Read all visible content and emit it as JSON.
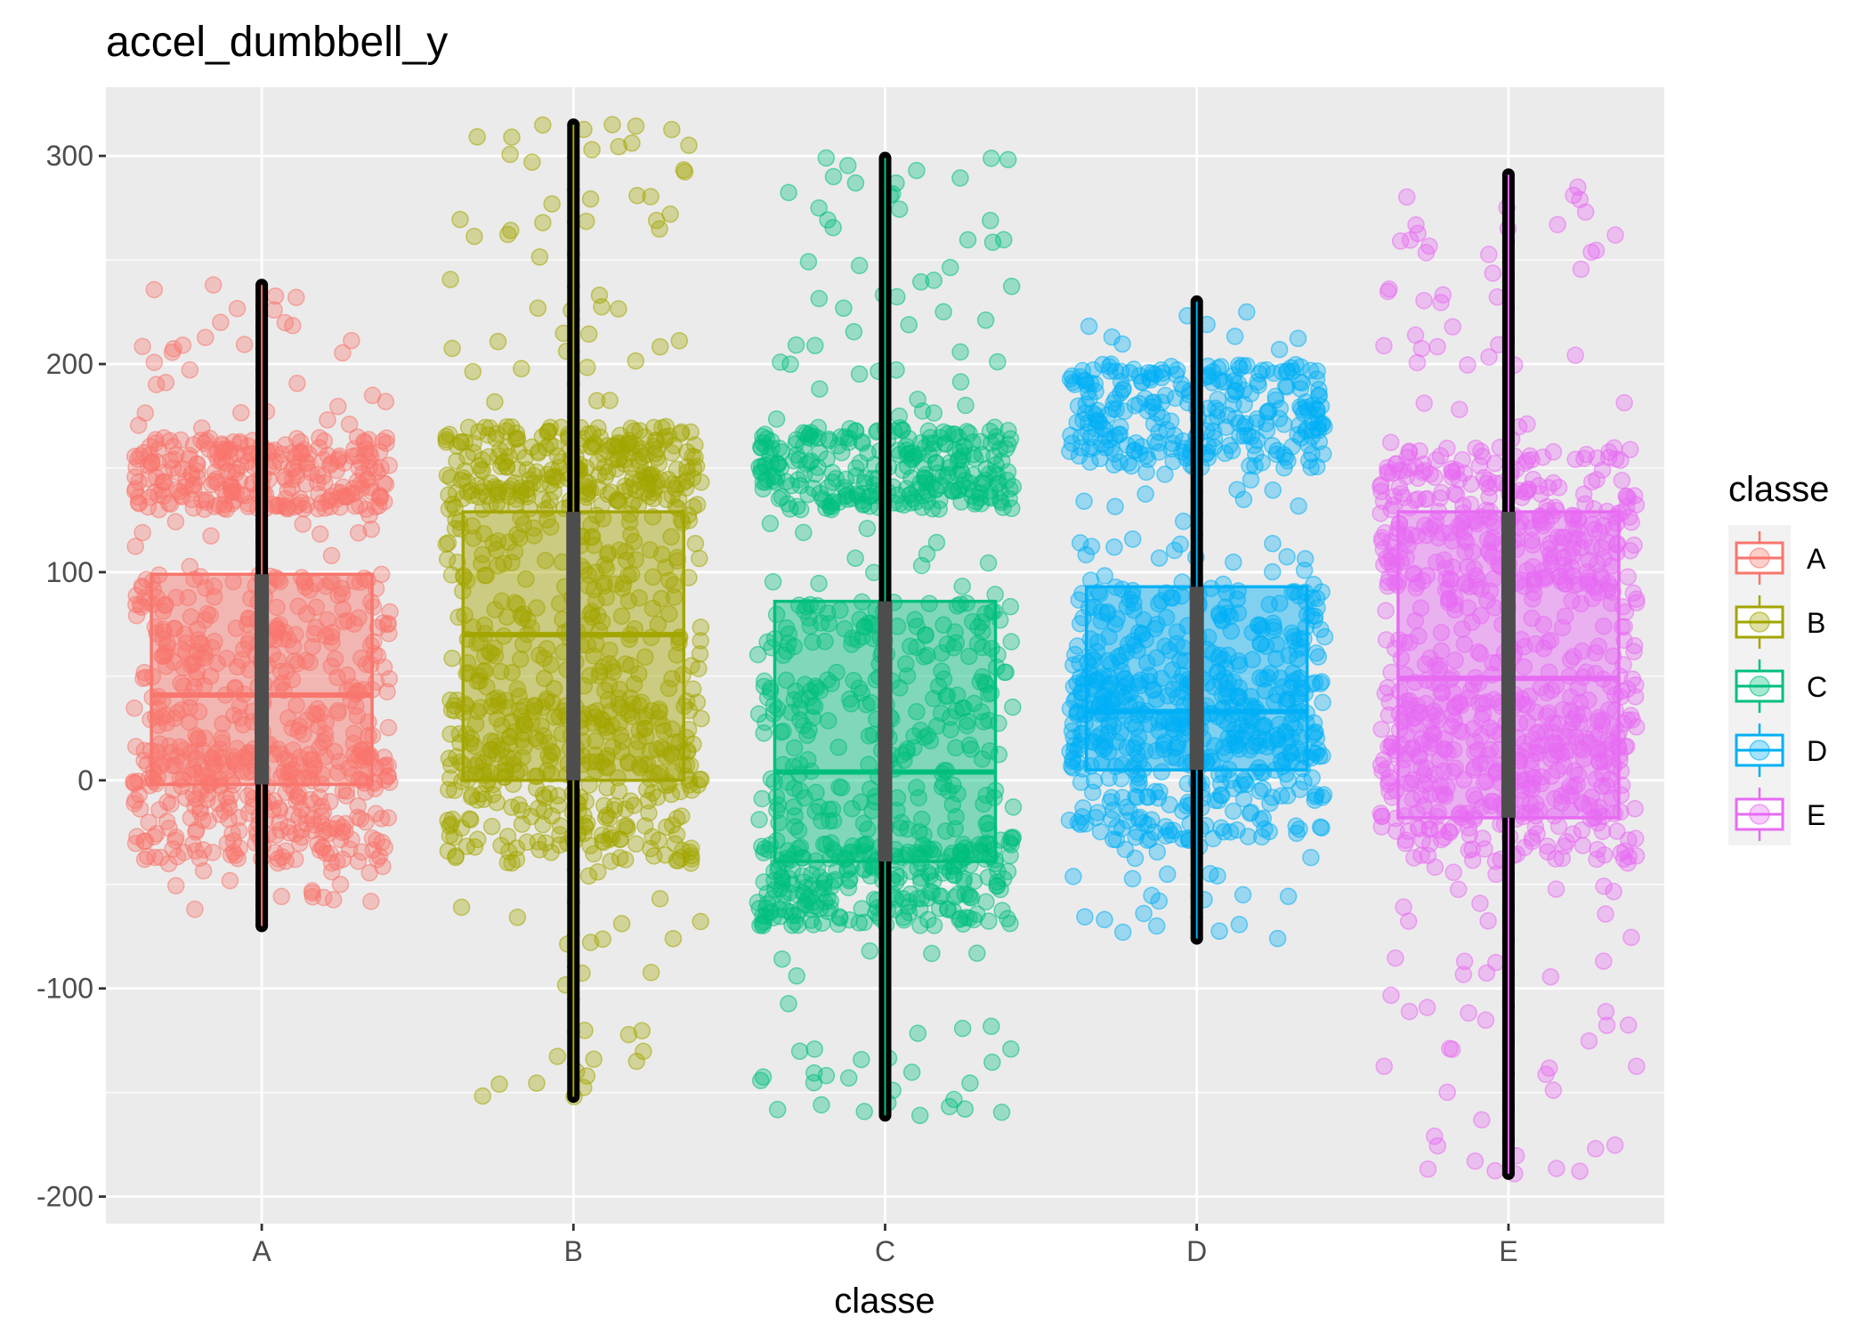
{
  "chart_data": {
    "type": "boxplot",
    "title": "accel_dumbbell_y",
    "xlabel": "classe",
    "ylabel": "",
    "categories": [
      "A",
      "B",
      "C",
      "D",
      "E"
    ],
    "y_ticks": [
      -200,
      -100,
      0,
      100,
      200,
      300
    ],
    "y_tick_labels": [
      "-200",
      "-100",
      "0",
      "100",
      "200",
      "300"
    ],
    "ylim": [
      -213,
      333
    ],
    "grid": true,
    "legend": {
      "title": "classe",
      "placement": "right",
      "entries": [
        "A",
        "B",
        "C",
        "D",
        "E"
      ]
    },
    "colors": {
      "A": "#F8766D",
      "B": "#A3A500",
      "C": "#00BF7D",
      "D": "#00B0F6",
      "E": "#E76BF3"
    },
    "boxes": [
      {
        "category": "A",
        "min": -70,
        "q1": -2,
        "median": 41,
        "q3": 99,
        "max": 238,
        "whisker_low": -70,
        "whisker_high": 238,
        "jitter_low": -62,
        "jitter_high": 238,
        "dense_bands": [
          [
            -40,
            15
          ],
          [
            130,
            165
          ]
        ]
      },
      {
        "category": "B",
        "min": -152,
        "q1": 0,
        "median": 70,
        "q3": 129,
        "max": 315,
        "whisker_low": -152,
        "whisker_high": 315,
        "jitter_low": -152,
        "jitter_high": 315,
        "dense_bands": [
          [
            -40,
            40
          ],
          [
            130,
            170
          ]
        ]
      },
      {
        "category": "C",
        "min": -161,
        "q1": -39,
        "median": 4,
        "q3": 86,
        "max": 299,
        "whisker_low": -161,
        "whisker_high": 299,
        "jitter_low": -161,
        "jitter_high": 299,
        "dense_bands": [
          [
            -70,
            -30
          ],
          [
            130,
            170
          ]
        ]
      },
      {
        "category": "D",
        "min": -76,
        "q1": 5,
        "median": 33,
        "q3": 93,
        "max": 230,
        "whisker_low": -76,
        "whisker_high": 230,
        "jitter_low": -76,
        "jitter_high": 225,
        "dense_bands": [
          [
            -30,
            50
          ],
          [
            150,
            200
          ]
        ]
      },
      {
        "category": "E",
        "min": -189,
        "q1": -18,
        "median": 49,
        "q3": 129,
        "max": 291,
        "whisker_low": -189,
        "whisker_high": 291,
        "jitter_low": -189,
        "jitter_high": 285,
        "dense_bands": [
          [
            -40,
            40
          ],
          [
            90,
            160
          ]
        ]
      }
    ]
  }
}
